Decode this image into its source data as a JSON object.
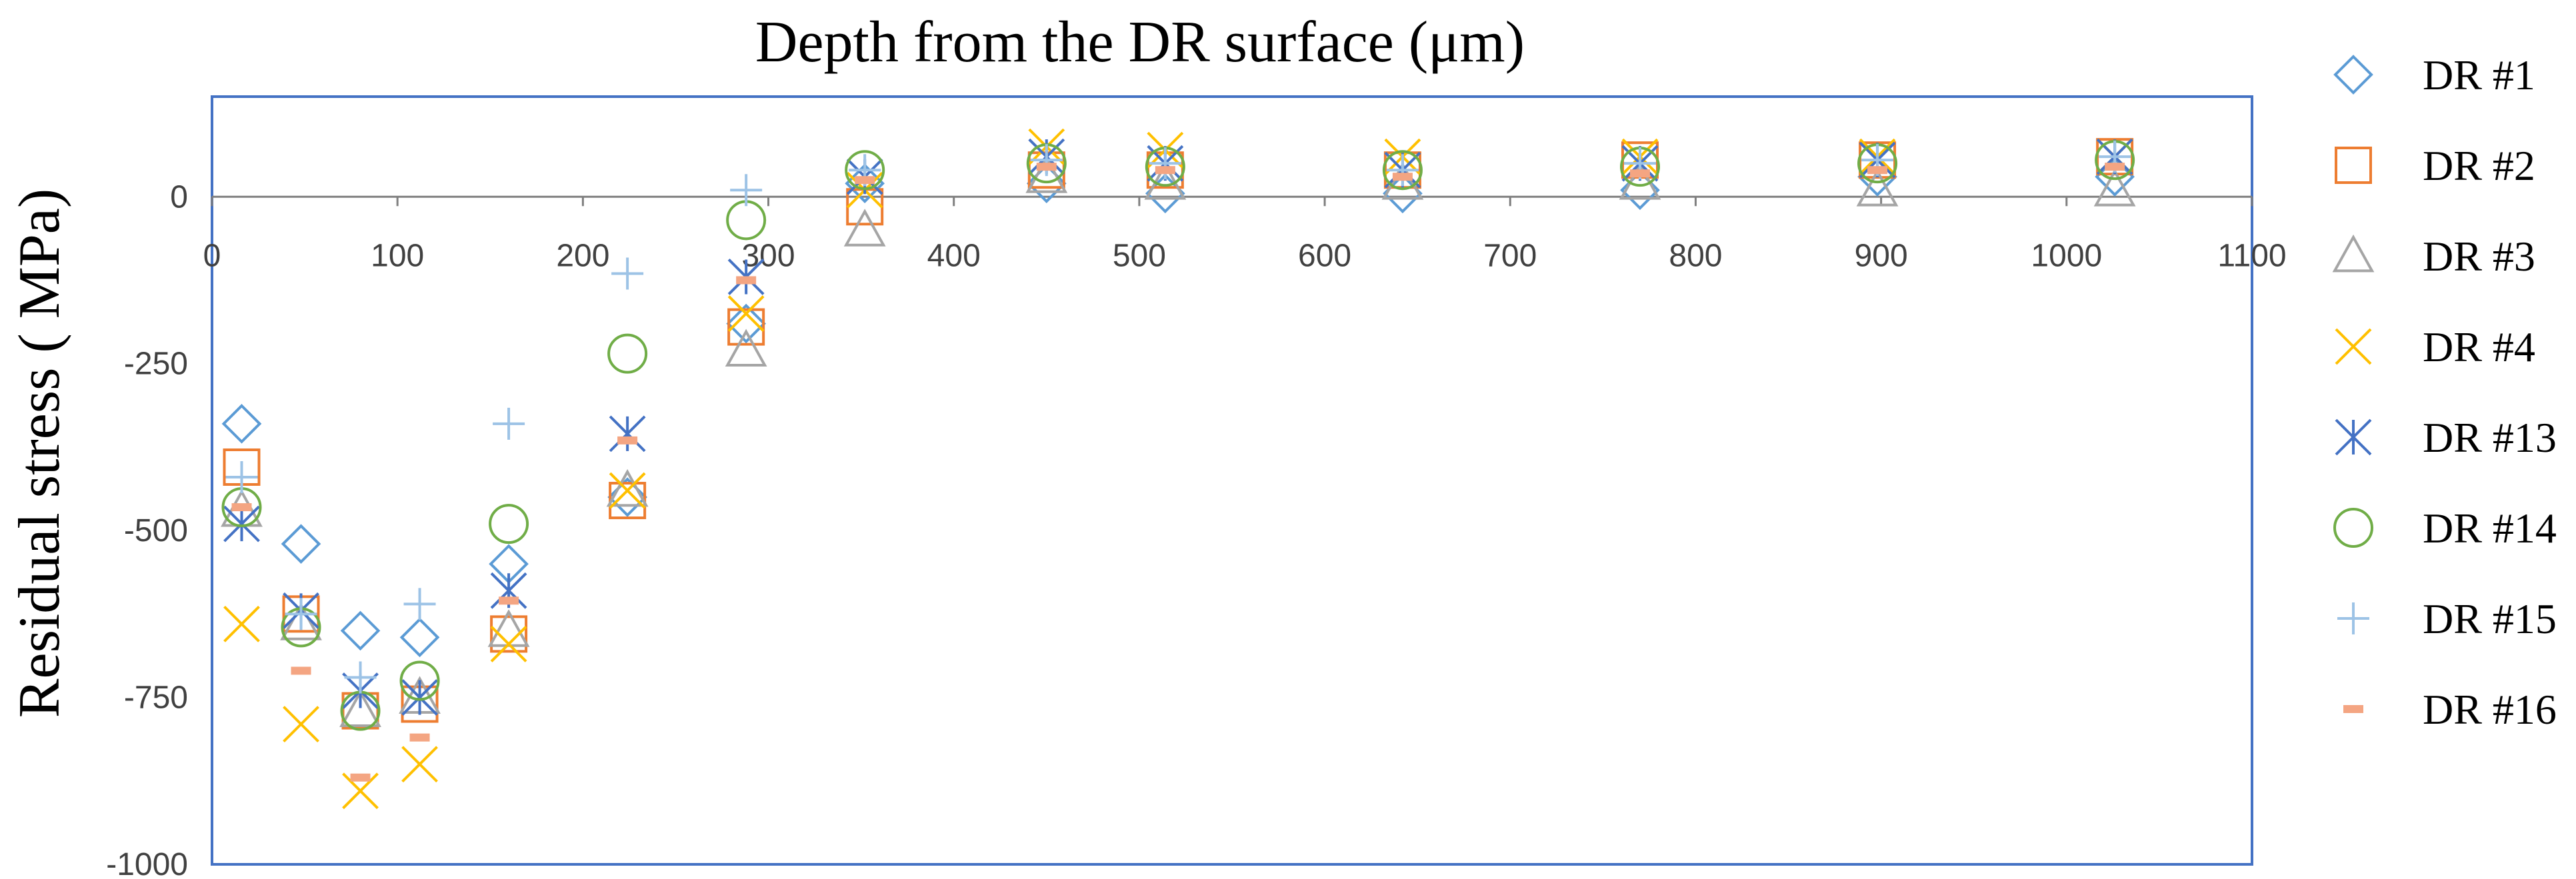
{
  "chart_data": {
    "type": "scatter",
    "title": "",
    "xlabel": "Depth from the DR surface (μm)",
    "ylabel": "Residual stress ( MPa)",
    "xlim": [
      0,
      1100
    ],
    "ylim": [
      -1000,
      150
    ],
    "x_ticks": [
      0,
      100,
      200,
      300,
      400,
      500,
      600,
      700,
      800,
      900,
      1000,
      1100
    ],
    "y_ticks": [
      0,
      -250,
      -500,
      -750,
      -1000
    ],
    "grid": false,
    "legend_position": "right",
    "series": [
      {
        "name": "DR #1",
        "marker": "diamond",
        "color": "#5b9bd5",
        "x": [
          16,
          48,
          80,
          112,
          160,
          224,
          288,
          352,
          450,
          514,
          642,
          770,
          898,
          1026
        ],
        "y": [
          -340,
          -520,
          -650,
          -660,
          -550,
          -450,
          -190,
          20,
          20,
          5,
          5,
          10,
          30,
          30
        ]
      },
      {
        "name": "DR #2",
        "marker": "square",
        "color": "#ed7d31",
        "x": [
          16,
          48,
          80,
          112,
          160,
          224,
          288,
          352,
          450,
          514,
          642,
          770,
          898,
          1026
        ],
        "y": [
          -405,
          -625,
          -770,
          -760,
          -655,
          -455,
          -195,
          -15,
          40,
          40,
          40,
          55,
          55,
          60
        ]
      },
      {
        "name": "DR #3",
        "marker": "triangle",
        "color": "#a5a5a5",
        "x": [
          16,
          48,
          80,
          112,
          160,
          224,
          288,
          352,
          450,
          514,
          642,
          770,
          898,
          1026
        ],
        "y": [
          -470,
          -640,
          -770,
          -750,
          -650,
          -440,
          -230,
          -50,
          30,
          20,
          20,
          20,
          10,
          10
        ]
      },
      {
        "name": "DR #4",
        "marker": "x",
        "color": "#ffc000",
        "x": [
          16,
          48,
          80,
          112,
          160,
          224,
          288,
          352,
          450,
          514,
          642,
          770,
          898,
          1026
        ],
        "y": [
          -640,
          -790,
          -890,
          -850,
          -670,
          -440,
          -175,
          10,
          75,
          70,
          60,
          60,
          60,
          60
        ]
      },
      {
        "name": "DR #13",
        "marker": "asterisk",
        "color": "#4472c4",
        "x": [
          16,
          48,
          80,
          112,
          160,
          224,
          288,
          352,
          450,
          514,
          642,
          770,
          898,
          1026
        ],
        "y": [
          -490,
          -620,
          -740,
          -750,
          -590,
          -355,
          -120,
          30,
          60,
          50,
          40,
          50,
          55,
          60
        ]
      },
      {
        "name": "DR #14",
        "marker": "circle",
        "color": "#70ad47",
        "x": [
          16,
          48,
          80,
          112,
          160,
          224,
          288,
          352,
          450,
          514,
          642,
          770,
          898,
          1026
        ],
        "y": [
          -465,
          -645,
          -770,
          -725,
          -490,
          -235,
          -35,
          40,
          50,
          45,
          40,
          45,
          50,
          55
        ]
      },
      {
        "name": "DR #15",
        "marker": "plus",
        "color": "#9dc3e6",
        "x": [
          16,
          48,
          80,
          112,
          160,
          224,
          288,
          352,
          450,
          514,
          642,
          770,
          898,
          1026
        ],
        "y": [
          -420,
          -625,
          -720,
          -610,
          -340,
          -115,
          10,
          40,
          55,
          50,
          40,
          50,
          55,
          60
        ]
      },
      {
        "name": "DR #16",
        "marker": "dash",
        "color": "#f4a582",
        "x": [
          16,
          48,
          80,
          112,
          160,
          224,
          288,
          352,
          450,
          514,
          642,
          770,
          898,
          1026
        ],
        "y": [
          -465,
          -710,
          -870,
          -810,
          -605,
          -365,
          -125,
          25,
          45,
          40,
          30,
          35,
          40,
          45
        ]
      }
    ]
  }
}
